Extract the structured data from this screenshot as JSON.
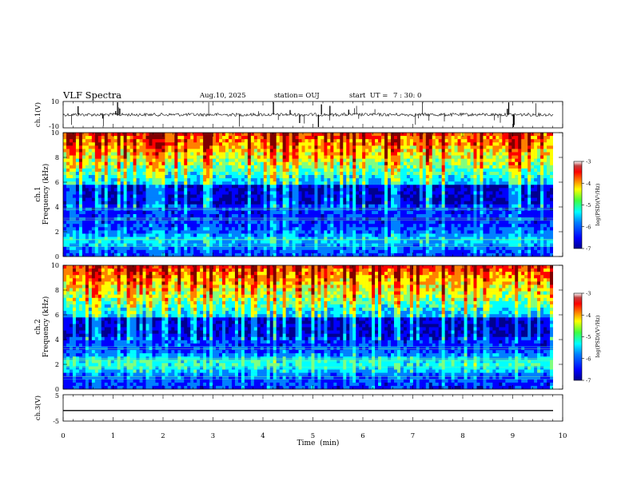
{
  "header": {
    "title": "VLF Spectra",
    "date": "Aug.10, 2025",
    "station": "station= OUJ",
    "start_label": "start  UT =",
    "start_time": "7 : 30: 0"
  },
  "chart_data": [
    {
      "type": "line",
      "panel": "ch1-waveform",
      "ylabel": "ch.1(V)",
      "ylim": [
        -10,
        10
      ],
      "yticks": [
        "10",
        "-10"
      ],
      "xlim": [
        0,
        10
      ],
      "baseline": 0,
      "note": "noisy waveform with sporadic impulsive spikes"
    },
    {
      "type": "heatmap",
      "panel": "ch1-spectrogram",
      "ylabel": "ch.1\nFrequency (kHz)",
      "ylim": [
        0,
        10
      ],
      "yticks": [
        "0",
        "2",
        "4",
        "6",
        "8",
        "10"
      ],
      "xlim": [
        0,
        10
      ],
      "colorbar": {
        "label": "log(PSD)(V²/Hz)",
        "range": [
          -7,
          -3
        ],
        "ticks": [
          "-3",
          "-4",
          "-5",
          "-6",
          "-7"
        ]
      }
    },
    {
      "type": "heatmap",
      "panel": "ch2-spectrogram",
      "ylabel": "ch.2\nFrequency (kHz)",
      "ylim": [
        0,
        10
      ],
      "yticks": [
        "0",
        "2",
        "4",
        "6",
        "8",
        "10"
      ],
      "xlim": [
        0,
        10
      ],
      "colorbar": {
        "label": "log(PSD)(V²/Hz)",
        "range": [
          -7,
          -3
        ],
        "ticks": [
          "-3",
          "-4",
          "-5",
          "-6",
          "-7"
        ]
      }
    },
    {
      "type": "line",
      "panel": "ch3-waveform",
      "ylabel": "ch.3(V)",
      "ylim": [
        -5,
        5
      ],
      "yticks": [
        "5",
        "-5"
      ],
      "xlim": [
        0,
        10
      ],
      "baseline": -1,
      "note": "flat line"
    }
  ],
  "xaxis": {
    "label": "Time  (min)",
    "ticks": [
      "0",
      "1",
      "2",
      "3",
      "4",
      "5",
      "6",
      "7",
      "8",
      "9",
      "10"
    ]
  },
  "colors": {
    "colormap": [
      "#00008f",
      "#0000ff",
      "#0080ff",
      "#00ffff",
      "#80ff80",
      "#ffff00",
      "#ff8000",
      "#ff0000",
      "#800000",
      "#ffffff"
    ]
  }
}
